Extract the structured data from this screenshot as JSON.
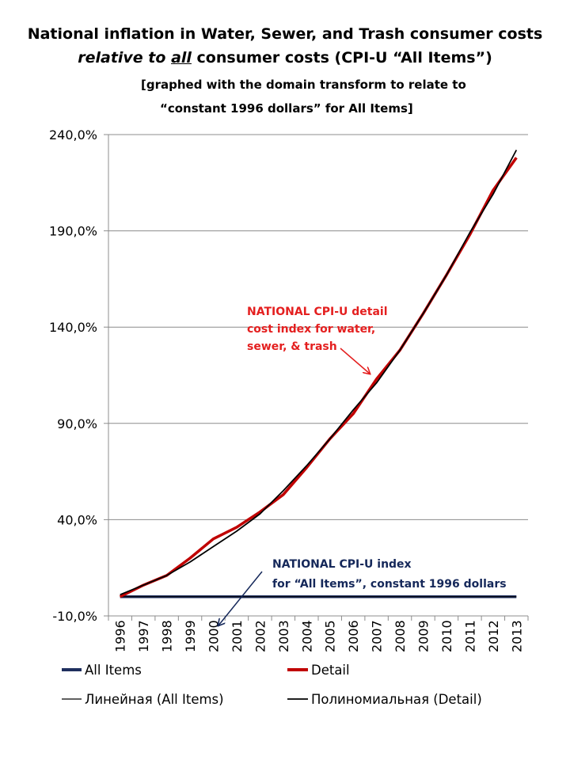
{
  "chart_data": {
    "type": "line",
    "title_line1": "National inflation in Water, Sewer, and Trash consumer costs",
    "title_line2_parts": [
      "relative to ",
      "all",
      " consumer costs (CPI-U “All Items”)"
    ],
    "subtitle_line1": "[graphed with the domain transform to relate to",
    "subtitle_line2": "“constant  1996 dollars”  for All Items]",
    "xlabel": "",
    "ylabel": "",
    "categories": [
      "1996",
      "1997",
      "1998",
      "1999",
      "2000",
      "2001",
      "2002",
      "2003",
      "2004",
      "2005",
      "2006",
      "2007",
      "2008",
      "2009",
      "2010",
      "2011",
      "2012",
      "2013"
    ],
    "y_ticks": [
      "-10,0%",
      "40,0%",
      "90,0%",
      "140,0%",
      "190,0%",
      "240,0%"
    ],
    "ylim": [
      -10,
      240
    ],
    "grid": "horizontal",
    "series": [
      {
        "name": "All Items",
        "color": "#1f2f5e",
        "values": [
          0,
          0,
          0,
          0,
          0,
          0,
          0,
          0,
          0,
          0,
          0,
          0,
          0,
          0,
          0,
          0,
          0,
          0
        ]
      },
      {
        "name": "Detail",
        "color": "#c00000",
        "values": [
          0,
          6,
          11,
          20,
          30,
          36,
          44,
          53,
          67,
          82,
          95,
          113,
          128,
          147,
          167,
          188,
          211,
          228
        ]
      }
    ],
    "trendlines": [
      {
        "name": "Линейная (All Items)",
        "color": "#000000",
        "values": [
          0,
          0,
          0,
          0,
          0,
          0,
          0,
          0,
          0,
          0,
          0,
          0,
          0,
          0,
          0,
          0,
          0,
          0
        ]
      },
      {
        "name": "Полиномиальная (Detail)",
        "color": "#000000",
        "values": [
          1,
          6,
          11,
          18,
          26,
          34,
          43,
          55,
          68,
          82,
          97,
          111,
          128,
          147,
          167,
          189,
          209,
          232
        ]
      }
    ],
    "legend": {
      "position": "bottom",
      "items": [
        "All Items",
        "Detail",
        "Линейная (All Items)",
        "Полиномиальная (Detail)"
      ]
    },
    "annotations": [
      {
        "id": "detail",
        "color": "#e41f1f",
        "lines": [
          "NATIONAL CPI-U detail",
          "cost index for water,",
          "sewer, & trash"
        ]
      },
      {
        "id": "all_items",
        "color": "#15285a",
        "lines": [
          "NATIONAL CPI-U index",
          "for “All Items”, constant 1996 dollars"
        ]
      }
    ]
  }
}
